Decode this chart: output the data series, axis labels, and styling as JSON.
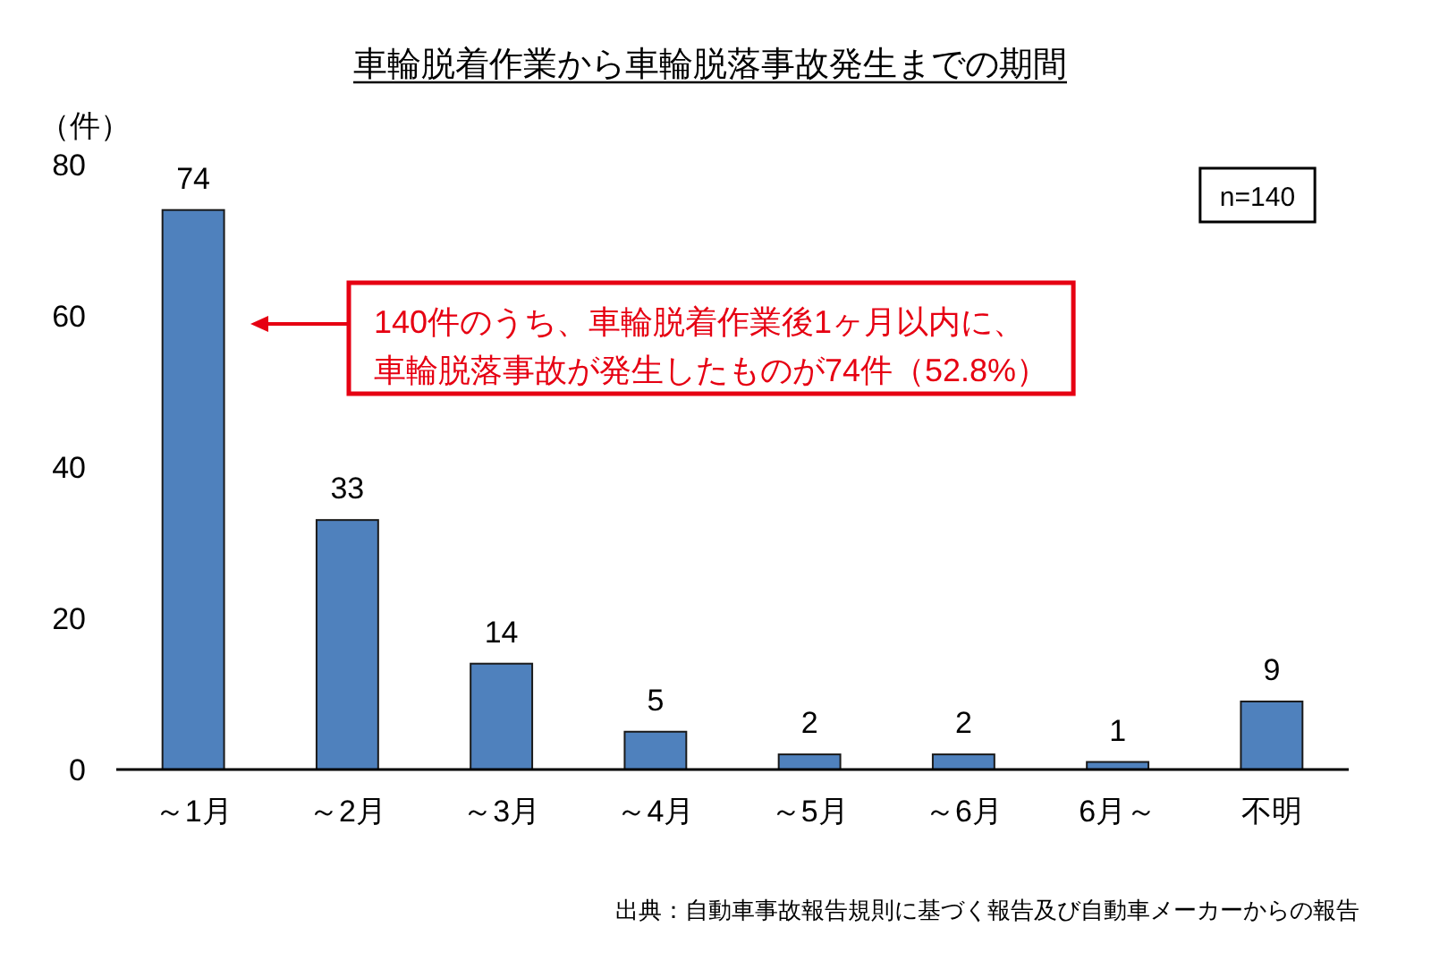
{
  "chart_data": {
    "type": "bar",
    "title": "車輪脱着作業から車輪脱落事故発生までの期間",
    "ylabel": "（件）",
    "categories": [
      "～1月",
      "～2月",
      "～3月",
      "～4月",
      "～5月",
      "～6月",
      "6月～",
      "不明"
    ],
    "values": [
      74,
      33,
      14,
      5,
      2,
      2,
      1,
      9
    ],
    "color": "#4f81bd",
    "ylim": [
      0,
      80
    ],
    "yticks": [
      0,
      20,
      40,
      60,
      80
    ],
    "data_labels": true,
    "annotations": [
      "n=140",
      "140件のうち、車輪脱着作業後1ヶ月以内に、車輪脱落事故が発生したものが74件（52.8%）",
      "出典：自動車事故報告規則に基づく報告及び自動車メーカーからの報告"
    ]
  }
}
